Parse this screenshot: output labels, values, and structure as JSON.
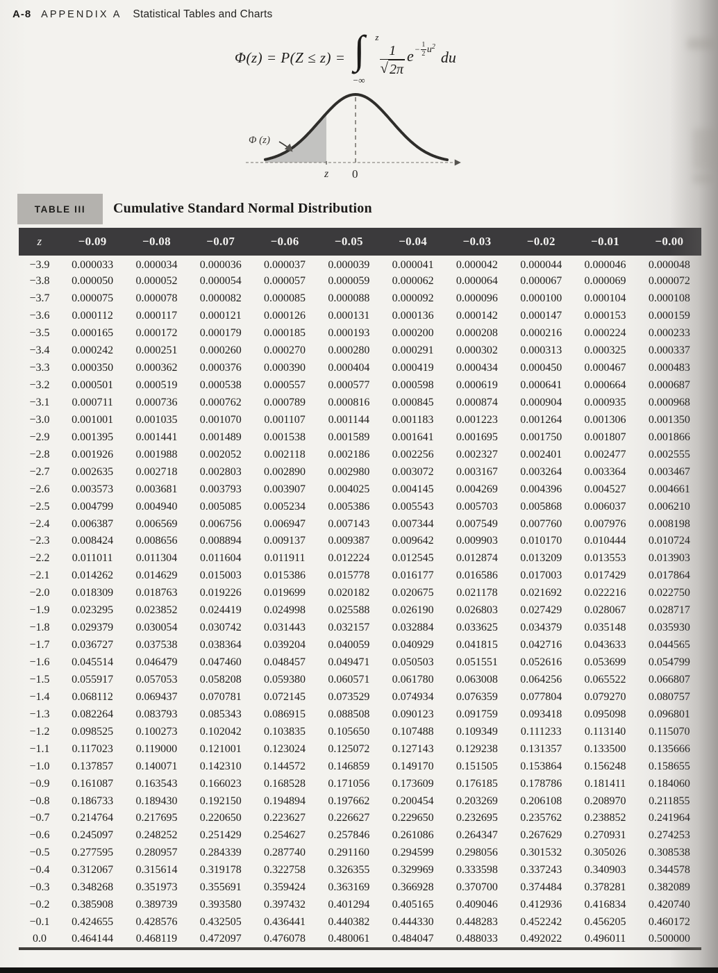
{
  "page_header": {
    "page_number": "A-8",
    "appendix": "APPENDIX A",
    "title": "Statistical Tables and Charts"
  },
  "formula": {
    "lhs": "Φ(z) = P(Z ≤ z) =",
    "integral_sign": "∫",
    "upper_limit": "z",
    "lower_limit": "−∞",
    "numerator": "1",
    "radical_sign": "√",
    "radicand": "2π",
    "e_symbol": "e",
    "exp_minus": "−",
    "exp_frac_num": "1",
    "exp_frac_den": "2",
    "exp_var": "u",
    "exp_power": "2",
    "differential": "du"
  },
  "diagram": {
    "area_label": "Φ (z)",
    "tick_z": "z",
    "tick_zero": "0"
  },
  "table": {
    "label": "TABLE III",
    "title": "Cumulative Standard Normal Distribution",
    "columns": [
      "z",
      "−0.09",
      "−0.08",
      "−0.07",
      "−0.06",
      "−0.05",
      "−0.04",
      "−0.03",
      "−0.02",
      "−0.01",
      "−0.00"
    ],
    "rows": [
      {
        "z": "−3.9",
        "values": [
          "0.000033",
          "0.000034",
          "0.000036",
          "0.000037",
          "0.000039",
          "0.000041",
          "0.000042",
          "0.000044",
          "0.000046",
          "0.000048"
        ]
      },
      {
        "z": "−3.8",
        "values": [
          "0.000050",
          "0.000052",
          "0.000054",
          "0.000057",
          "0.000059",
          "0.000062",
          "0.000064",
          "0.000067",
          "0.000069",
          "0.000072"
        ]
      },
      {
        "z": "−3.7",
        "values": [
          "0.000075",
          "0.000078",
          "0.000082",
          "0.000085",
          "0.000088",
          "0.000092",
          "0.000096",
          "0.000100",
          "0.000104",
          "0.000108"
        ]
      },
      {
        "z": "−3.6",
        "values": [
          "0.000112",
          "0.000117",
          "0.000121",
          "0.000126",
          "0.000131",
          "0.000136",
          "0.000142",
          "0.000147",
          "0.000153",
          "0.000159"
        ]
      },
      {
        "z": "−3.5",
        "values": [
          "0.000165",
          "0.000172",
          "0.000179",
          "0.000185",
          "0.000193",
          "0.000200",
          "0.000208",
          "0.000216",
          "0.000224",
          "0.000233"
        ]
      },
      {
        "z": "−3.4",
        "values": [
          "0.000242",
          "0.000251",
          "0.000260",
          "0.000270",
          "0.000280",
          "0.000291",
          "0.000302",
          "0.000313",
          "0.000325",
          "0.000337"
        ]
      },
      {
        "z": "−3.3",
        "values": [
          "0.000350",
          "0.000362",
          "0.000376",
          "0.000390",
          "0.000404",
          "0.000419",
          "0.000434",
          "0.000450",
          "0.000467",
          "0.000483"
        ]
      },
      {
        "z": "−3.2",
        "values": [
          "0.000501",
          "0.000519",
          "0.000538",
          "0.000557",
          "0.000577",
          "0.000598",
          "0.000619",
          "0.000641",
          "0.000664",
          "0.000687"
        ]
      },
      {
        "z": "−3.1",
        "values": [
          "0.000711",
          "0.000736",
          "0.000762",
          "0.000789",
          "0.000816",
          "0.000845",
          "0.000874",
          "0.000904",
          "0.000935",
          "0.000968"
        ]
      },
      {
        "z": "−3.0",
        "values": [
          "0.001001",
          "0.001035",
          "0.001070",
          "0.001107",
          "0.001144",
          "0.001183",
          "0.001223",
          "0.001264",
          "0.001306",
          "0.001350"
        ]
      },
      {
        "z": "−2.9",
        "values": [
          "0.001395",
          "0.001441",
          "0.001489",
          "0.001538",
          "0.001589",
          "0.001641",
          "0.001695",
          "0.001750",
          "0.001807",
          "0.001866"
        ]
      },
      {
        "z": "−2.8",
        "values": [
          "0.001926",
          "0.001988",
          "0.002052",
          "0.002118",
          "0.002186",
          "0.002256",
          "0.002327",
          "0.002401",
          "0.002477",
          "0.002555"
        ]
      },
      {
        "z": "−2.7",
        "values": [
          "0.002635",
          "0.002718",
          "0.002803",
          "0.002890",
          "0.002980",
          "0.003072",
          "0.003167",
          "0.003264",
          "0.003364",
          "0.003467"
        ]
      },
      {
        "z": "−2.6",
        "values": [
          "0.003573",
          "0.003681",
          "0.003793",
          "0.003907",
          "0.004025",
          "0.004145",
          "0.004269",
          "0.004396",
          "0.004527",
          "0.004661"
        ]
      },
      {
        "z": "−2.5",
        "values": [
          "0.004799",
          "0.004940",
          "0.005085",
          "0.005234",
          "0.005386",
          "0.005543",
          "0.005703",
          "0.005868",
          "0.006037",
          "0.006210"
        ]
      },
      {
        "z": "−2.4",
        "values": [
          "0.006387",
          "0.006569",
          "0.006756",
          "0.006947",
          "0.007143",
          "0.007344",
          "0.007549",
          "0.007760",
          "0.007976",
          "0.008198"
        ]
      },
      {
        "z": "−2.3",
        "values": [
          "0.008424",
          "0.008656",
          "0.008894",
          "0.009137",
          "0.009387",
          "0.009642",
          "0.009903",
          "0.010170",
          "0.010444",
          "0.010724"
        ]
      },
      {
        "z": "−2.2",
        "values": [
          "0.011011",
          "0.011304",
          "0.011604",
          "0.011911",
          "0.012224",
          "0.012545",
          "0.012874",
          "0.013209",
          "0.013553",
          "0.013903"
        ]
      },
      {
        "z": "−2.1",
        "values": [
          "0.014262",
          "0.014629",
          "0.015003",
          "0.015386",
          "0.015778",
          "0.016177",
          "0.016586",
          "0.017003",
          "0.017429",
          "0.017864"
        ]
      },
      {
        "z": "−2.0",
        "values": [
          "0.018309",
          "0.018763",
          "0.019226",
          "0.019699",
          "0.020182",
          "0.020675",
          "0.021178",
          "0.021692",
          "0.022216",
          "0.022750"
        ]
      },
      {
        "z": "−1.9",
        "values": [
          "0.023295",
          "0.023852",
          "0.024419",
          "0.024998",
          "0.025588",
          "0.026190",
          "0.026803",
          "0.027429",
          "0.028067",
          "0.028717"
        ]
      },
      {
        "z": "−1.8",
        "values": [
          "0.029379",
          "0.030054",
          "0.030742",
          "0.031443",
          "0.032157",
          "0.032884",
          "0.033625",
          "0.034379",
          "0.035148",
          "0.035930"
        ]
      },
      {
        "z": "−1.7",
        "values": [
          "0.036727",
          "0.037538",
          "0.038364",
          "0.039204",
          "0.040059",
          "0.040929",
          "0.041815",
          "0.042716",
          "0.043633",
          "0.044565"
        ]
      },
      {
        "z": "−1.6",
        "values": [
          "0.045514",
          "0.046479",
          "0.047460",
          "0.048457",
          "0.049471",
          "0.050503",
          "0.051551",
          "0.052616",
          "0.053699",
          "0.054799"
        ]
      },
      {
        "z": "−1.5",
        "values": [
          "0.055917",
          "0.057053",
          "0.058208",
          "0.059380",
          "0.060571",
          "0.061780",
          "0.063008",
          "0.064256",
          "0.065522",
          "0.066807"
        ]
      },
      {
        "z": "−1.4",
        "values": [
          "0.068112",
          "0.069437",
          "0.070781",
          "0.072145",
          "0.073529",
          "0.074934",
          "0.076359",
          "0.077804",
          "0.079270",
          "0.080757"
        ]
      },
      {
        "z": "−1.3",
        "values": [
          "0.082264",
          "0.083793",
          "0.085343",
          "0.086915",
          "0.088508",
          "0.090123",
          "0.091759",
          "0.093418",
          "0.095098",
          "0.096801"
        ]
      },
      {
        "z": "−1.2",
        "values": [
          "0.098525",
          "0.100273",
          "0.102042",
          "0.103835",
          "0.105650",
          "0.107488",
          "0.109349",
          "0.111233",
          "0.113140",
          "0.115070"
        ]
      },
      {
        "z": "−1.1",
        "values": [
          "0.117023",
          "0.119000",
          "0.121001",
          "0.123024",
          "0.125072",
          "0.127143",
          "0.129238",
          "0.131357",
          "0.133500",
          "0.135666"
        ]
      },
      {
        "z": "−1.0",
        "values": [
          "0.137857",
          "0.140071",
          "0.142310",
          "0.144572",
          "0.146859",
          "0.149170",
          "0.151505",
          "0.153864",
          "0.156248",
          "0.158655"
        ]
      },
      {
        "z": "−0.9",
        "values": [
          "0.161087",
          "0.163543",
          "0.166023",
          "0.168528",
          "0.171056",
          "0.173609",
          "0.176185",
          "0.178786",
          "0.181411",
          "0.184060"
        ]
      },
      {
        "z": "−0.8",
        "values": [
          "0.186733",
          "0.189430",
          "0.192150",
          "0.194894",
          "0.197662",
          "0.200454",
          "0.203269",
          "0.206108",
          "0.208970",
          "0.211855"
        ]
      },
      {
        "z": "−0.7",
        "values": [
          "0.214764",
          "0.217695",
          "0.220650",
          "0.223627",
          "0.226627",
          "0.229650",
          "0.232695",
          "0.235762",
          "0.238852",
          "0.241964"
        ]
      },
      {
        "z": "−0.6",
        "values": [
          "0.245097",
          "0.248252",
          "0.251429",
          "0.254627",
          "0.257846",
          "0.261086",
          "0.264347",
          "0.267629",
          "0.270931",
          "0.274253"
        ]
      },
      {
        "z": "−0.5",
        "values": [
          "0.277595",
          "0.280957",
          "0.284339",
          "0.287740",
          "0.291160",
          "0.294599",
          "0.298056",
          "0.301532",
          "0.305026",
          "0.308538"
        ]
      },
      {
        "z": "−0.4",
        "values": [
          "0.312067",
          "0.315614",
          "0.319178",
          "0.322758",
          "0.326355",
          "0.329969",
          "0.333598",
          "0.337243",
          "0.340903",
          "0.344578"
        ]
      },
      {
        "z": "−0.3",
        "values": [
          "0.348268",
          "0.351973",
          "0.355691",
          "0.359424",
          "0.363169",
          "0.366928",
          "0.370700",
          "0.374484",
          "0.378281",
          "0.382089"
        ]
      },
      {
        "z": "−0.2",
        "values": [
          "0.385908",
          "0.389739",
          "0.393580",
          "0.397432",
          "0.401294",
          "0.405165",
          "0.409046",
          "0.412936",
          "0.416834",
          "0.420740"
        ]
      },
      {
        "z": "−0.1",
        "values": [
          "0.424655",
          "0.428576",
          "0.432505",
          "0.436441",
          "0.440382",
          "0.444330",
          "0.448283",
          "0.452242",
          "0.456205",
          "0.460172"
        ]
      },
      {
        "z": "0.0",
        "values": [
          "0.464144",
          "0.468119",
          "0.472097",
          "0.476078",
          "0.480061",
          "0.484047",
          "0.488033",
          "0.492022",
          "0.496011",
          "0.500000"
        ]
      }
    ]
  },
  "colors": {
    "page_bg": "#f2f1ed",
    "header_band": "#3b3a3c",
    "label_box": "#b4b2ae",
    "ink": "#1c1b19",
    "curve_fill": "#bdbcba"
  }
}
